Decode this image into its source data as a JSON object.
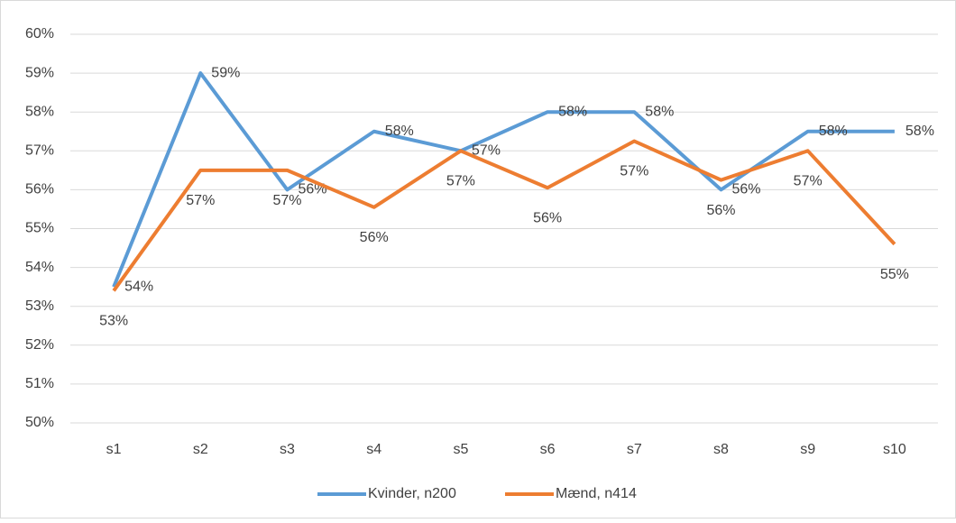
{
  "chart_data": {
    "type": "line",
    "categories": [
      "s1",
      "s2",
      "s3",
      "s4",
      "s5",
      "s6",
      "s7",
      "s8",
      "s9",
      "s10"
    ],
    "series": [
      {
        "name": "Kvinder, n200",
        "color": "#5b9bd5",
        "values": [
          53.5,
          59,
          56,
          57.5,
          57,
          58,
          58,
          56,
          57.5,
          57.5
        ],
        "value_labels": [
          "54%",
          "59%",
          "56%",
          "58%",
          "57%",
          "58%",
          "58%",
          "56%",
          "58%",
          "58%"
        ]
      },
      {
        "name": "Mænd, n414",
        "color": "#ed7d31",
        "values": [
          53.4,
          56.5,
          56.5,
          55.55,
          57,
          56.05,
          57.25,
          56.25,
          57,
          54.6
        ],
        "value_labels": [
          "53%",
          "57%",
          "57%",
          "56%",
          "57%",
          "56%",
          "57%",
          "56%",
          "57%",
          "55%"
        ]
      }
    ],
    "ylim": [
      50,
      60
    ],
    "yticks": [
      {
        "value": 50,
        "label": "50%"
      },
      {
        "value": 51,
        "label": "51%"
      },
      {
        "value": 52,
        "label": "52%"
      },
      {
        "value": 53,
        "label": "53%"
      },
      {
        "value": 54,
        "label": "54%"
      },
      {
        "value": 55,
        "label": "55%"
      },
      {
        "value": 56,
        "label": "56%"
      },
      {
        "value": 57,
        "label": "57%"
      },
      {
        "value": 58,
        "label": "58%"
      },
      {
        "value": 59,
        "label": "59%"
      },
      {
        "value": 60,
        "label": "60%"
      }
    ],
    "grid": true,
    "legend": "bottom"
  }
}
